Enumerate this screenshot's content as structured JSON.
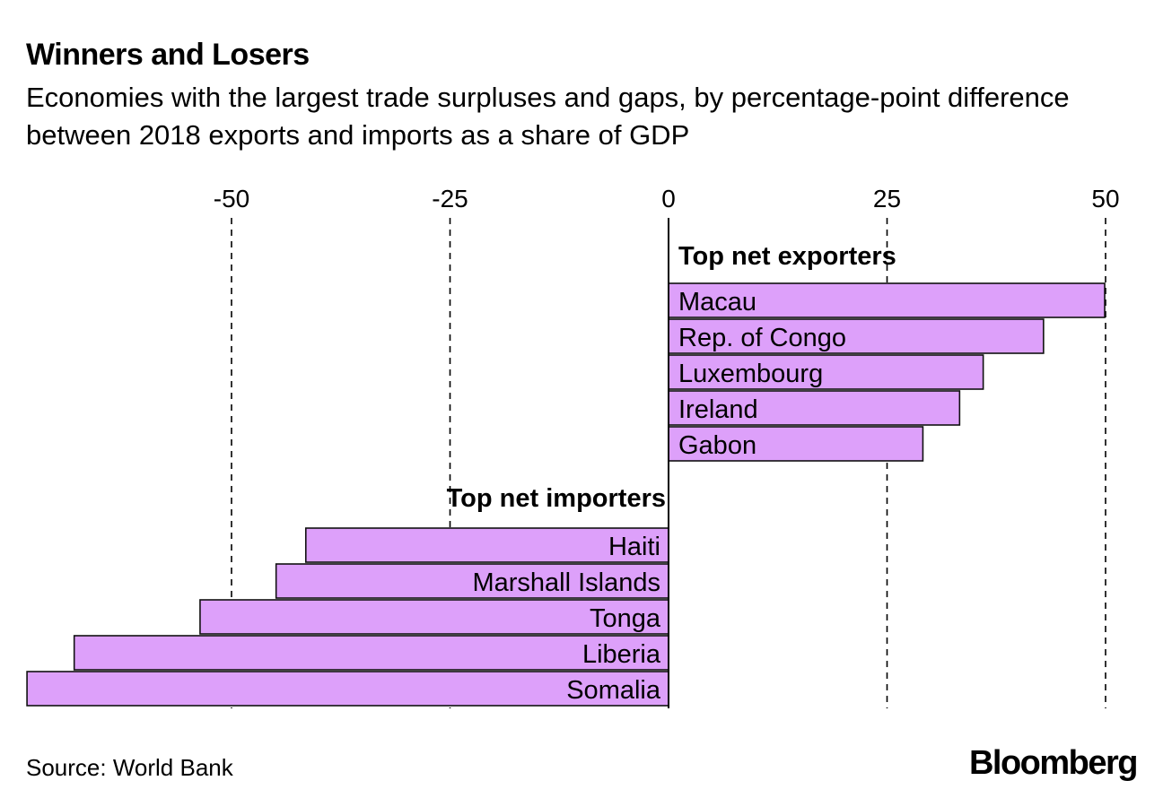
{
  "title": "Winners and Losers",
  "subtitle": "Economies with the largest trade surpluses and gaps, by percentage-point difference between 2018 exports and imports as a share of GDP",
  "source": "Source: World Bank",
  "brand": "Bloomberg",
  "colors": {
    "bar": "#dda0fa",
    "outline": "#111111",
    "grid": "#000000"
  },
  "chart_data": {
    "type": "bar",
    "orientation": "horizontal",
    "title": "Winners and Losers",
    "subtitle": "Economies with the largest trade surpluses and gaps, by percentage-point difference between 2018 exports and imports as a share of GDP",
    "xlim": [
      -73.4,
      49.9
    ],
    "x_ticks": [
      -50,
      -25,
      0,
      25,
      50
    ],
    "grid": "vertical dashed",
    "groups": [
      {
        "name": "Top net exporters",
        "categories": [
          "Macau",
          "Rep. of Congo",
          "Luxembourg",
          "Ireland",
          "Gabon"
        ],
        "values": [
          49.9,
          42.9,
          36.0,
          33.3,
          29.1
        ]
      },
      {
        "name": "Top net importers",
        "categories": [
          "Haiti",
          "Marshall Islands",
          "Tonga",
          "Liberia",
          "Somalia"
        ],
        "values": [
          -41.5,
          -44.9,
          -53.6,
          -68.0,
          -73.4
        ]
      }
    ]
  }
}
